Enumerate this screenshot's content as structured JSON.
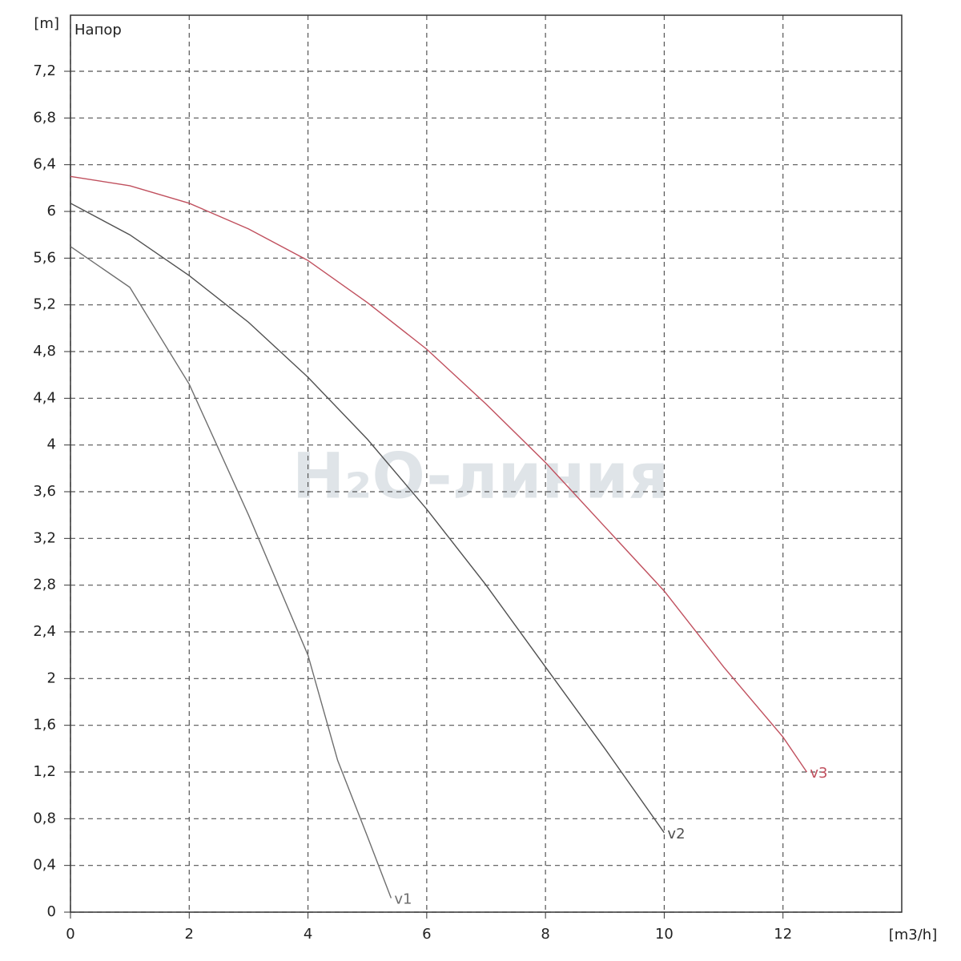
{
  "chart_data": {
    "type": "line",
    "y_label": "[m]",
    "x_label": "[m3/h]",
    "annotation": "Напор",
    "watermark": "H₂O-линия",
    "xlim": [
      0,
      14
    ],
    "ylim": [
      0,
      7.68
    ],
    "xticks": [
      0,
      2,
      4,
      6,
      8,
      10,
      12
    ],
    "yticks": [
      0,
      {
        "value": 0.4,
        "label": "0,4"
      },
      {
        "value": 0.8,
        "label": "0,8"
      },
      {
        "value": 1.2,
        "label": "1,2"
      },
      {
        "value": 1.6,
        "label": "1,6"
      },
      2,
      {
        "value": 2.4,
        "label": "2,4"
      },
      {
        "value": 2.8,
        "label": "2,8"
      },
      {
        "value": 3.2,
        "label": "3,2"
      },
      {
        "value": 3.6,
        "label": "3,6"
      },
      4,
      {
        "value": 4.4,
        "label": "4,4"
      },
      {
        "value": 4.8,
        "label": "4,8"
      },
      {
        "value": 5.2,
        "label": "5,2"
      },
      {
        "value": 5.6,
        "label": "5,6"
      },
      6,
      {
        "value": 6.4,
        "label": "6,4"
      },
      {
        "value": 6.8,
        "label": "6,8"
      },
      {
        "value": 7.2,
        "label": "7,2"
      }
    ],
    "grid": true,
    "series": [
      {
        "name": "v1",
        "color": "#6e6e6e",
        "x": [
          0,
          1,
          2,
          3,
          4,
          4.5,
          5,
          5.4
        ],
        "values": [
          5.7,
          5.35,
          4.52,
          3.4,
          2.2,
          1.3,
          0.65,
          0.12
        ]
      },
      {
        "name": "v2",
        "color": "#505050",
        "x": [
          0,
          1,
          2,
          3,
          4,
          5,
          6,
          7,
          8,
          9,
          10
        ],
        "values": [
          6.07,
          5.8,
          5.45,
          5.05,
          4.58,
          4.05,
          3.45,
          2.8,
          2.1,
          1.4,
          0.68
        ]
      },
      {
        "name": "v3",
        "color": "#c0505e",
        "x": [
          0,
          1,
          2,
          3,
          4,
          5,
          6,
          7,
          8,
          9,
          10,
          11,
          12,
          12.4
        ],
        "values": [
          6.3,
          6.22,
          6.07,
          5.85,
          5.58,
          5.22,
          4.82,
          4.35,
          3.85,
          3.3,
          2.75,
          2.1,
          1.5,
          1.2
        ]
      }
    ]
  }
}
